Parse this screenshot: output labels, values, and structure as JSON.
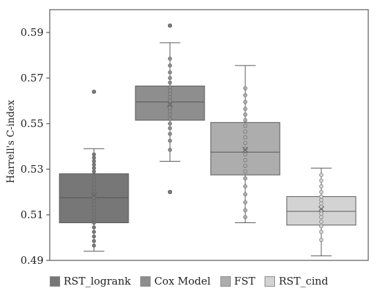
{
  "chart_data": {
    "type": "box",
    "ylabel": "Harrell's C-index",
    "ylim": [
      0.49,
      0.6
    ],
    "yticks": [
      0.49,
      0.51,
      0.53,
      0.55,
      0.57,
      0.59
    ],
    "ytick_labels": [
      "0.49",
      "0.51",
      "0.53",
      "0.55",
      "0.57",
      "0.59"
    ],
    "grid": false,
    "legend_placement": "bottom",
    "series": [
      {
        "name": "RST_logrank",
        "color": "#777777",
        "whisker_low": 0.494,
        "q1": 0.5065,
        "median": 0.5175,
        "q3": 0.528,
        "whisker_high": 0.539,
        "mean": 0.5185,
        "outliers": [
          0.564
        ],
        "points": [
          0.4965,
          0.4985,
          0.5005,
          0.5025,
          0.5045,
          0.5065,
          0.508,
          0.51,
          0.5115,
          0.513,
          0.5145,
          0.516,
          0.5175,
          0.519,
          0.5205,
          0.522,
          0.5235,
          0.525,
          0.527,
          0.529,
          0.5305,
          0.532,
          0.5335,
          0.535,
          0.5365
        ]
      },
      {
        "name": "Cox Model",
        "color": "#8e8e8e",
        "whisker_low": 0.5335,
        "q1": 0.5515,
        "median": 0.5595,
        "q3": 0.5665,
        "whisker_high": 0.5855,
        "mean": 0.5585,
        "outliers": [
          0.593,
          0.52
        ],
        "points": [
          0.5385,
          0.5425,
          0.5455,
          0.548,
          0.55,
          0.552,
          0.554,
          0.5555,
          0.557,
          0.5585,
          0.56,
          0.5615,
          0.563,
          0.5645,
          0.566,
          0.568,
          0.57,
          0.5725,
          0.5755,
          0.5785
        ]
      },
      {
        "name": "FST",
        "color": "#adadad",
        "whisker_low": 0.5065,
        "q1": 0.5275,
        "median": 0.5375,
        "q3": 0.5505,
        "whisker_high": 0.5755,
        "mean": 0.5385,
        "outliers": [],
        "points": [
          0.509,
          0.512,
          0.5155,
          0.519,
          0.5225,
          0.526,
          0.529,
          0.5315,
          0.534,
          0.5365,
          0.539,
          0.5415,
          0.544,
          0.5465,
          0.549,
          0.5515,
          0.554,
          0.5565,
          0.5595,
          0.5625,
          0.5655
        ]
      },
      {
        "name": "RST_cind",
        "color": "#d3d3d3",
        "whisker_low": 0.492,
        "q1": 0.5055,
        "median": 0.5115,
        "q3": 0.518,
        "whisker_high": 0.5305,
        "mean": 0.5125,
        "outliers": [],
        "points": [
          0.499,
          0.5025,
          0.505,
          0.507,
          0.509,
          0.5105,
          0.512,
          0.5135,
          0.515,
          0.5165,
          0.518,
          0.52,
          0.5225,
          0.525,
          0.5275
        ]
      }
    ]
  }
}
